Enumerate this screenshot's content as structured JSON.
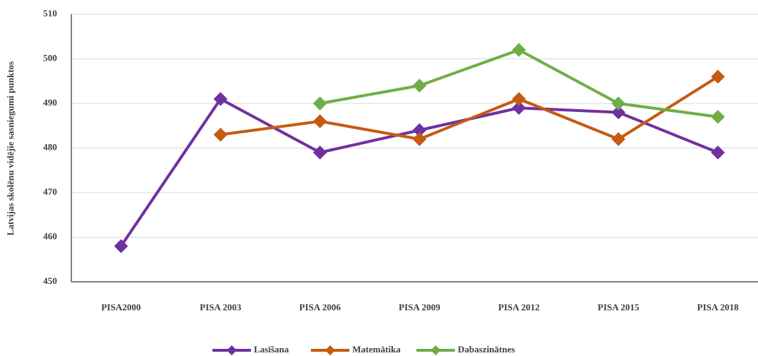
{
  "chart_data": {
    "type": "line",
    "y_label": "Latvijas skolēnu vidējie sasniegumi punktos",
    "categories": [
      "PISA2000",
      "PISA 2003",
      "PISA 2006",
      "PISA 2009",
      "PISA 2012",
      "PISA 2015",
      "PISA 2018"
    ],
    "series": [
      {
        "name": "Lasīšana",
        "color": "#7030a0",
        "values": [
          458,
          491,
          479,
          484,
          489,
          488,
          479
        ]
      },
      {
        "name": "Matemātika",
        "color": "#c55a11",
        "values": [
          null,
          483,
          486,
          482,
          491,
          482,
          496
        ]
      },
      {
        "name": "Dabaszinātnes",
        "color": "#70ad47",
        "values": [
          null,
          null,
          490,
          494,
          502,
          490,
          487
        ]
      }
    ],
    "ylim": [
      450,
      510
    ],
    "yticks": [
      450,
      460,
      470,
      480,
      490,
      500,
      510
    ],
    "grid": true,
    "legend": "bottom"
  }
}
